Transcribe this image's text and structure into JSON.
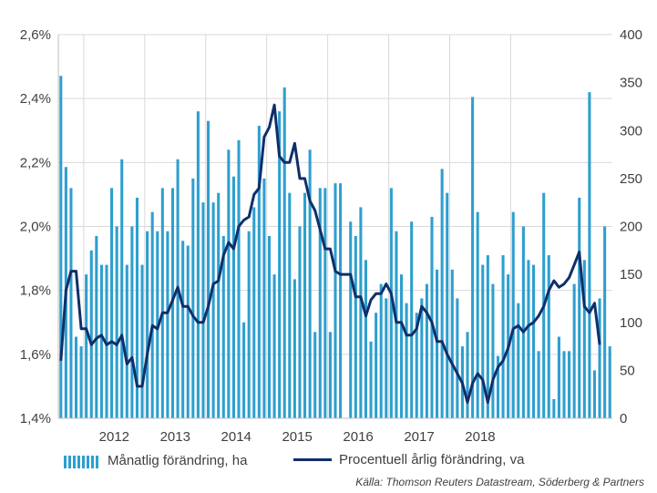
{
  "chart_data": {
    "type": "bar+line",
    "colors": {
      "bars": "#2e9fcf",
      "line": "#0f2f6b",
      "grid": "#d9d9d9"
    },
    "left_axis": {
      "ylim": [
        1.4,
        2.6
      ],
      "ticks": [
        "1,4%",
        "1,6%",
        "1,8%",
        "2,0%",
        "2,2%",
        "2,4%",
        "2,6%"
      ]
    },
    "right_axis": {
      "ylim": [
        0,
        400
      ],
      "ticks": [
        "0",
        "50",
        "100",
        "150",
        "200",
        "250",
        "300",
        "350",
        "400"
      ]
    },
    "x_axis": {
      "ticks": [
        "2012",
        "2013",
        "2014",
        "2015",
        "2016",
        "2017",
        "2018"
      ]
    },
    "x_start": "2011-08",
    "grid": true,
    "series": [
      {
        "name": "Månatlig förändring, ha",
        "type": "bar",
        "axis": "right",
        "values": [
          357,
          262,
          240,
          85,
          75,
          150,
          175,
          190,
          160,
          160,
          240,
          200,
          270,
          160,
          200,
          230,
          160,
          195,
          215,
          195,
          240,
          195,
          240,
          270,
          185,
          180,
          250,
          320,
          225,
          310,
          225,
          235,
          190,
          280,
          252,
          290,
          100,
          195,
          220,
          305,
          250,
          190,
          150,
          320,
          345,
          235,
          145,
          200,
          235,
          280,
          90,
          240,
          240,
          90,
          245,
          245,
          0,
          205,
          190,
          220,
          165,
          80,
          110,
          140,
          125,
          240,
          195,
          150,
          120,
          205,
          110,
          125,
          140,
          210,
          155,
          260,
          235,
          155,
          125,
          75,
          90,
          335,
          215,
          160,
          170,
          140,
          65,
          170,
          150,
          215,
          120,
          200,
          165,
          160,
          70,
          235,
          170,
          20,
          85,
          70,
          70,
          140,
          230,
          165,
          340,
          50,
          125,
          200,
          75
        ]
      },
      {
        "name": "Procentuell årlig förändring, va",
        "type": "line",
        "axis": "left",
        "values": [
          1.58,
          1.8,
          1.86,
          1.86,
          1.68,
          1.68,
          1.63,
          1.65,
          1.66,
          1.63,
          1.64,
          1.63,
          1.66,
          1.57,
          1.59,
          1.5,
          1.5,
          1.6,
          1.69,
          1.68,
          1.73,
          1.73,
          1.77,
          1.81,
          1.75,
          1.75,
          1.72,
          1.7,
          1.7,
          1.75,
          1.82,
          1.83,
          1.91,
          1.95,
          1.93,
          2.0,
          2.02,
          2.03,
          2.1,
          2.12,
          2.28,
          2.31,
          2.38,
          2.22,
          2.2,
          2.2,
          2.26,
          2.15,
          2.15,
          2.08,
          2.05,
          1.99,
          1.93,
          1.93,
          1.86,
          1.85,
          1.85,
          1.85,
          1.78,
          1.78,
          1.72,
          1.77,
          1.79,
          1.79,
          1.82,
          1.79,
          1.7,
          1.7,
          1.66,
          1.66,
          1.68,
          1.75,
          1.73,
          1.7,
          1.64,
          1.64,
          1.6,
          1.57,
          1.54,
          1.51,
          1.45,
          1.51,
          1.54,
          1.52,
          1.45,
          1.52,
          1.56,
          1.58,
          1.62,
          1.68,
          1.69,
          1.67,
          1.69,
          1.7,
          1.72,
          1.75,
          1.8,
          1.83,
          1.81,
          1.82,
          1.84,
          1.88,
          1.92,
          1.75,
          1.73,
          1.76,
          1.63
        ]
      }
    ]
  },
  "legend": {
    "bars_label": "Månatlig förändring, ha",
    "line_label": "Procentuell årlig förändring, va"
  },
  "source": "Källa: Thomson Reuters Datastream, Söderberg & Partners"
}
